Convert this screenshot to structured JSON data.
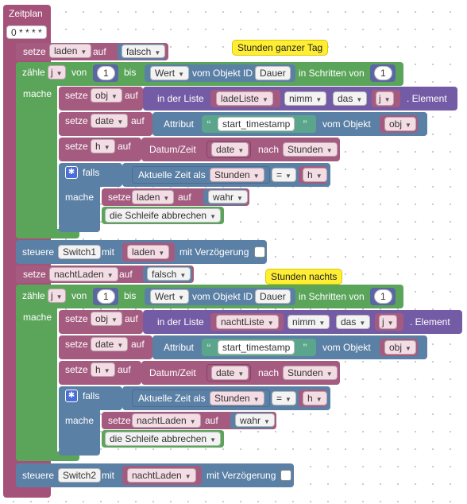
{
  "schedule": {
    "title": "Zeitplan",
    "cron": "0 * * * *"
  },
  "labels": {
    "setze": "setze",
    "auf": "auf",
    "zaehle": "zähle",
    "von": "von",
    "bis": "bis",
    "vom_objekt_id": "vom Objekt ID",
    "in_schritten_von": "in Schritten von",
    "mache": "mache",
    "in_der_liste": "in der Liste",
    "element": "Element",
    "attribut": "Attribut",
    "vom_objekt": "vom Objekt",
    "datum_zeit": "Datum/Zeit",
    "nach": "nach",
    "falls": "falls",
    "aktuelle_zeit_als": "Aktuelle Zeit als",
    "schleife_abbrechen": "die Schleife abbrechen",
    "steuere": "steuere",
    "mit": "mit",
    "mit_verzoegerung": "mit Verzögerung",
    "wert": "Wert"
  },
  "section1": {
    "comment": "Stunden ganzer Tag",
    "var": "laden",
    "init_value": "falsch",
    "loop_var": "j",
    "from": "1",
    "step": "1",
    "object_id": "Dauer",
    "obj_var": "obj",
    "list_name": "ladeListe",
    "nimm": "nimm",
    "das": "das",
    "index_var": "j",
    "date_var": "date",
    "attr": "start_timestamp",
    "attr_obj": "obj",
    "h_var": "h",
    "date_src": "date",
    "unit": "Stunden",
    "cmp_unit": "Stunden",
    "op": "=",
    "cmp_var": "h",
    "set_var": "laden",
    "set_value": "wahr",
    "switch": "Switch1",
    "switch_value": "laden"
  },
  "section2": {
    "comment": "Stunden nachts",
    "var": "nachtLaden",
    "init_value": "falsch",
    "loop_var": "j",
    "from": "1",
    "step": "1",
    "object_id": "Dauer",
    "obj_var": "obj",
    "list_name": "nachtListe",
    "nimm": "nimm",
    "das": "das",
    "index_var": "j",
    "date_var": "date",
    "attr": "start_timestamp",
    "attr_obj": "obj",
    "h_var": "h",
    "date_src": "date",
    "unit": "Stunden",
    "cmp_unit": "Stunden",
    "op": "=",
    "cmp_var": "h",
    "set_var": "nachtLaden",
    "set_value": "wahr",
    "switch": "Switch2",
    "switch_value": "nachtLaden"
  },
  "colors": {
    "schedule": "#a5527a",
    "variables": "#a55b80",
    "loops": "#5ba55b",
    "logic": "#5b80a5",
    "lists": "#745ba5",
    "text": "#5ba58c",
    "note": "#ffee33"
  }
}
